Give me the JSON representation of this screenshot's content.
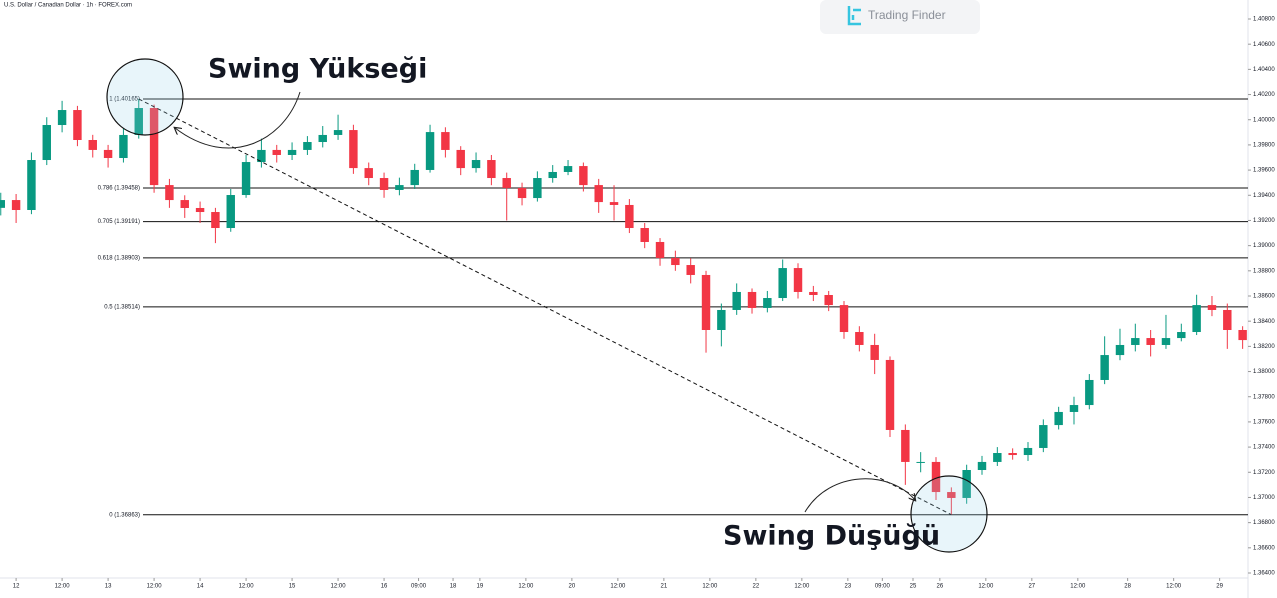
{
  "chart_data": {
    "type": "candlestick",
    "title": "U.S. Dollar / Canadian Dollar · 1h · FOREX.com",
    "watermark": "Trading Finder",
    "up_color": "#089981",
    "down_color": "#f23645",
    "annotations": [
      "Swing Yükseği",
      "Swing Düşüğü"
    ],
    "x": [
      -4,
      0,
      4,
      8,
      12,
      16,
      20,
      24,
      28,
      32,
      36,
      40,
      44,
      48,
      52,
      56,
      60,
      64,
      68,
      72,
      76,
      80,
      84,
      88,
      92,
      96,
      100,
      104,
      108,
      112,
      116,
      120,
      124,
      128,
      132,
      136,
      140,
      144,
      148,
      152,
      156,
      160,
      164,
      168,
      172,
      176,
      180,
      184,
      188,
      192,
      196,
      200,
      204,
      208,
      212,
      216,
      220,
      224,
      228,
      232,
      236,
      240,
      244,
      248,
      252,
      256,
      260,
      264,
      268,
      272,
      276,
      280,
      284,
      288,
      292,
      296,
      300,
      304,
      308,
      312,
      316,
      320
    ],
    "open": [
      1.393,
      1.39362,
      1.39283,
      1.3968,
      1.39958,
      1.40077,
      1.39839,
      1.3976,
      1.39696,
      1.39879,
      1.40093,
      1.39481,
      1.39362,
      1.39299,
      1.39267,
      1.3914,
      1.39402,
      1.39664,
      1.3976,
      1.3972,
      1.3976,
      1.39823,
      1.39879,
      1.39918,
      1.39616,
      1.39537,
      1.39442,
      1.39481,
      1.39601,
      1.39902,
      1.3976,
      1.39616,
      1.3968,
      1.39537,
      1.39458,
      1.39378,
      1.39537,
      1.39585,
      1.39632,
      1.39481,
      1.39346,
      1.39323,
      1.3914,
      1.39029,
      1.38902,
      1.38846,
      1.38767,
      1.3833,
      1.38489,
      1.38632,
      1.38505,
      1.38584,
      1.38822,
      1.38632,
      1.38608,
      1.38528,
      1.38314,
      1.38211,
      1.38092,
      1.37536,
      1.37282,
      1.37282,
      1.37043,
      1.36996,
      1.37218,
      1.37282,
      1.37353,
      1.37337,
      1.37393,
      1.37575,
      1.37679,
      1.37734,
      1.37933,
      1.38131,
      1.38211,
      1.38266,
      1.38211,
      1.38266,
      1.38314,
      1.38528,
      1.38489,
      1.3833
    ],
    "high": [
      1.3942,
      1.3941,
      1.3974,
      1.4002,
      1.4015,
      1.4011,
      1.3988,
      1.398,
      1.3993,
      1.40165,
      1.4012,
      1.3953,
      1.394,
      1.3935,
      1.393,
      1.3945,
      1.3972,
      1.3985,
      1.398,
      1.3982,
      1.3987,
      1.3995,
      1.4004,
      1.3996,
      1.3966,
      1.3958,
      1.3954,
      1.3965,
      1.3996,
      1.3994,
      1.3979,
      1.3974,
      1.3972,
      1.3958,
      1.395,
      1.3959,
      1.3964,
      1.3968,
      1.3966,
      1.3953,
      1.3948,
      1.3937,
      1.3918,
      1.3906,
      1.3896,
      1.389,
      1.388,
      1.3854,
      1.387,
      1.3866,
      1.3864,
      1.3889,
      1.3886,
      1.3868,
      1.3864,
      1.3856,
      1.3836,
      1.383,
      1.3812,
      1.3758,
      1.3736,
      1.3732,
      1.3708,
      1.3726,
      1.3733,
      1.374,
      1.3739,
      1.3744,
      1.3762,
      1.3772,
      1.378,
      1.3798,
      1.3828,
      1.3834,
      1.3838,
      1.3833,
      1.3845,
      1.3838,
      1.3861,
      1.386,
      1.3854,
      1.3836
    ],
    "low": [
      1.3924,
      1.3918,
      1.3925,
      1.3964,
      1.399,
      1.3979,
      1.397,
      1.3962,
      1.3966,
      1.3985,
      1.3942,
      1.393,
      1.3922,
      1.3918,
      1.3902,
      1.3911,
      1.3938,
      1.3962,
      1.3966,
      1.3968,
      1.3972,
      1.3978,
      1.3984,
      1.3957,
      1.3948,
      1.3938,
      1.394,
      1.3945,
      1.3958,
      1.397,
      1.3956,
      1.3958,
      1.3948,
      1.392,
      1.3932,
      1.3935,
      1.395,
      1.3956,
      1.3943,
      1.3926,
      1.392,
      1.391,
      1.3898,
      1.3884,
      1.388,
      1.387,
      1.3815,
      1.382,
      1.3845,
      1.3846,
      1.3847,
      1.3856,
      1.3858,
      1.3856,
      1.3848,
      1.3826,
      1.3816,
      1.3798,
      1.3748,
      1.371,
      1.372,
      1.3698,
      1.36863,
      1.3695,
      1.3718,
      1.3725,
      1.373,
      1.3729,
      1.3736,
      1.3754,
      1.3758,
      1.377,
      1.379,
      1.3809,
      1.3816,
      1.3812,
      1.3818,
      1.3824,
      1.3829,
      1.3844,
      1.3818,
      1.3818
    ],
    "close": [
      1.39362,
      1.39283,
      1.3968,
      1.39958,
      1.40077,
      1.39839,
      1.3976,
      1.39696,
      1.39879,
      1.40093,
      1.39481,
      1.39362,
      1.39299,
      1.39267,
      1.3914,
      1.39402,
      1.39664,
      1.3976,
      1.3972,
      1.3976,
      1.39823,
      1.39879,
      1.39918,
      1.39616,
      1.39537,
      1.39442,
      1.39481,
      1.39601,
      1.39902,
      1.3976,
      1.39616,
      1.3968,
      1.39537,
      1.39458,
      1.39378,
      1.39537,
      1.39585,
      1.39632,
      1.39481,
      1.39346,
      1.39323,
      1.3914,
      1.39029,
      1.38902,
      1.38846,
      1.38767,
      1.3833,
      1.38489,
      1.38632,
      1.38505,
      1.38584,
      1.38822,
      1.38632,
      1.38608,
      1.38528,
      1.38314,
      1.38211,
      1.38092,
      1.37536,
      1.37282,
      1.37282,
      1.37043,
      1.36996,
      1.37218,
      1.37282,
      1.37353,
      1.37337,
      1.37393,
      1.37575,
      1.37679,
      1.37734,
      1.37933,
      1.38131,
      1.38211,
      1.38266,
      1.38211,
      1.38266,
      1.38314,
      1.38528,
      1.38489,
      1.3833,
      1.3825
    ],
    "fib_levels": [
      {
        "value": 1.40165,
        "label": "1 (1.40165)"
      },
      {
        "value": 1.39458,
        "label": "0.786 (1.39458)"
      },
      {
        "value": 1.39191,
        "label": "0.705 (1.39191)"
      },
      {
        "value": 1.38903,
        "label": "0.618 (1.38903)"
      },
      {
        "value": 1.38514,
        "label": "0.5 (1.38514)"
      },
      {
        "value": 1.36863,
        "label": "0 (1.36863)"
      }
    ],
    "xlim": [
      -4.2,
      321.4
    ],
    "xticks": [
      {
        "value": 0,
        "label": "12"
      },
      {
        "value": 12,
        "label": "12:00"
      },
      {
        "value": 24,
        "label": "13"
      },
      {
        "value": 36,
        "label": "12:00"
      },
      {
        "value": 48,
        "label": "14"
      },
      {
        "value": 60,
        "label": "12:00"
      },
      {
        "value": 72,
        "label": "15"
      },
      {
        "value": 84,
        "label": "12:00"
      },
      {
        "value": 96,
        "label": "16"
      },
      {
        "value": 105,
        "label": "09:00"
      },
      {
        "value": 114,
        "label": "18"
      },
      {
        "value": 121,
        "label": "19"
      },
      {
        "value": 133,
        "label": "12:00"
      },
      {
        "value": 145,
        "label": "20"
      },
      {
        "value": 157,
        "label": "12:00"
      },
      {
        "value": 169,
        "label": "21"
      },
      {
        "value": 181,
        "label": "12:00"
      },
      {
        "value": 193,
        "label": "22"
      },
      {
        "value": 205,
        "label": "12:00"
      },
      {
        "value": 217,
        "label": "23"
      },
      {
        "value": 226,
        "label": "09:00"
      },
      {
        "value": 234,
        "label": "25"
      },
      {
        "value": 241,
        "label": "26"
      },
      {
        "value": 253,
        "label": "12:00"
      },
      {
        "value": 265,
        "label": "27"
      },
      {
        "value": 277,
        "label": "12:00"
      },
      {
        "value": 290,
        "label": "28"
      },
      {
        "value": 302,
        "label": "12:00"
      },
      {
        "value": 314,
        "label": "29"
      }
    ],
    "ylim": [
      1.364,
      1.408
    ],
    "yticks": [
      {
        "value": 1.364,
        "label": "1.36400"
      },
      {
        "value": 1.366,
        "label": "1.36600"
      },
      {
        "value": 1.368,
        "label": "1.36800"
      },
      {
        "value": 1.37,
        "label": "1.37000"
      },
      {
        "value": 1.372,
        "label": "1.37200"
      },
      {
        "value": 1.374,
        "label": "1.37400"
      },
      {
        "value": 1.376,
        "label": "1.37600"
      },
      {
        "value": 1.378,
        "label": "1.37800"
      },
      {
        "value": 1.38,
        "label": "1.38000"
      },
      {
        "value": 1.382,
        "label": "1.38200"
      },
      {
        "value": 1.384,
        "label": "1.38400"
      },
      {
        "value": 1.386,
        "label": "1.38600"
      },
      {
        "value": 1.388,
        "label": "1.38800"
      },
      {
        "value": 1.39,
        "label": "1.39000"
      },
      {
        "value": 1.392,
        "label": "1.39200"
      },
      {
        "value": 1.394,
        "label": "1.39400"
      },
      {
        "value": 1.396,
        "label": "1.39600"
      },
      {
        "value": 1.398,
        "label": "1.39800"
      },
      {
        "value": 1.4,
        "label": "1.40000"
      },
      {
        "value": 1.402,
        "label": "1.40200"
      },
      {
        "value": 1.404,
        "label": "1.40400"
      },
      {
        "value": 1.406,
        "label": "1.40600"
      },
      {
        "value": 1.408,
        "label": "1.40800"
      }
    ]
  }
}
